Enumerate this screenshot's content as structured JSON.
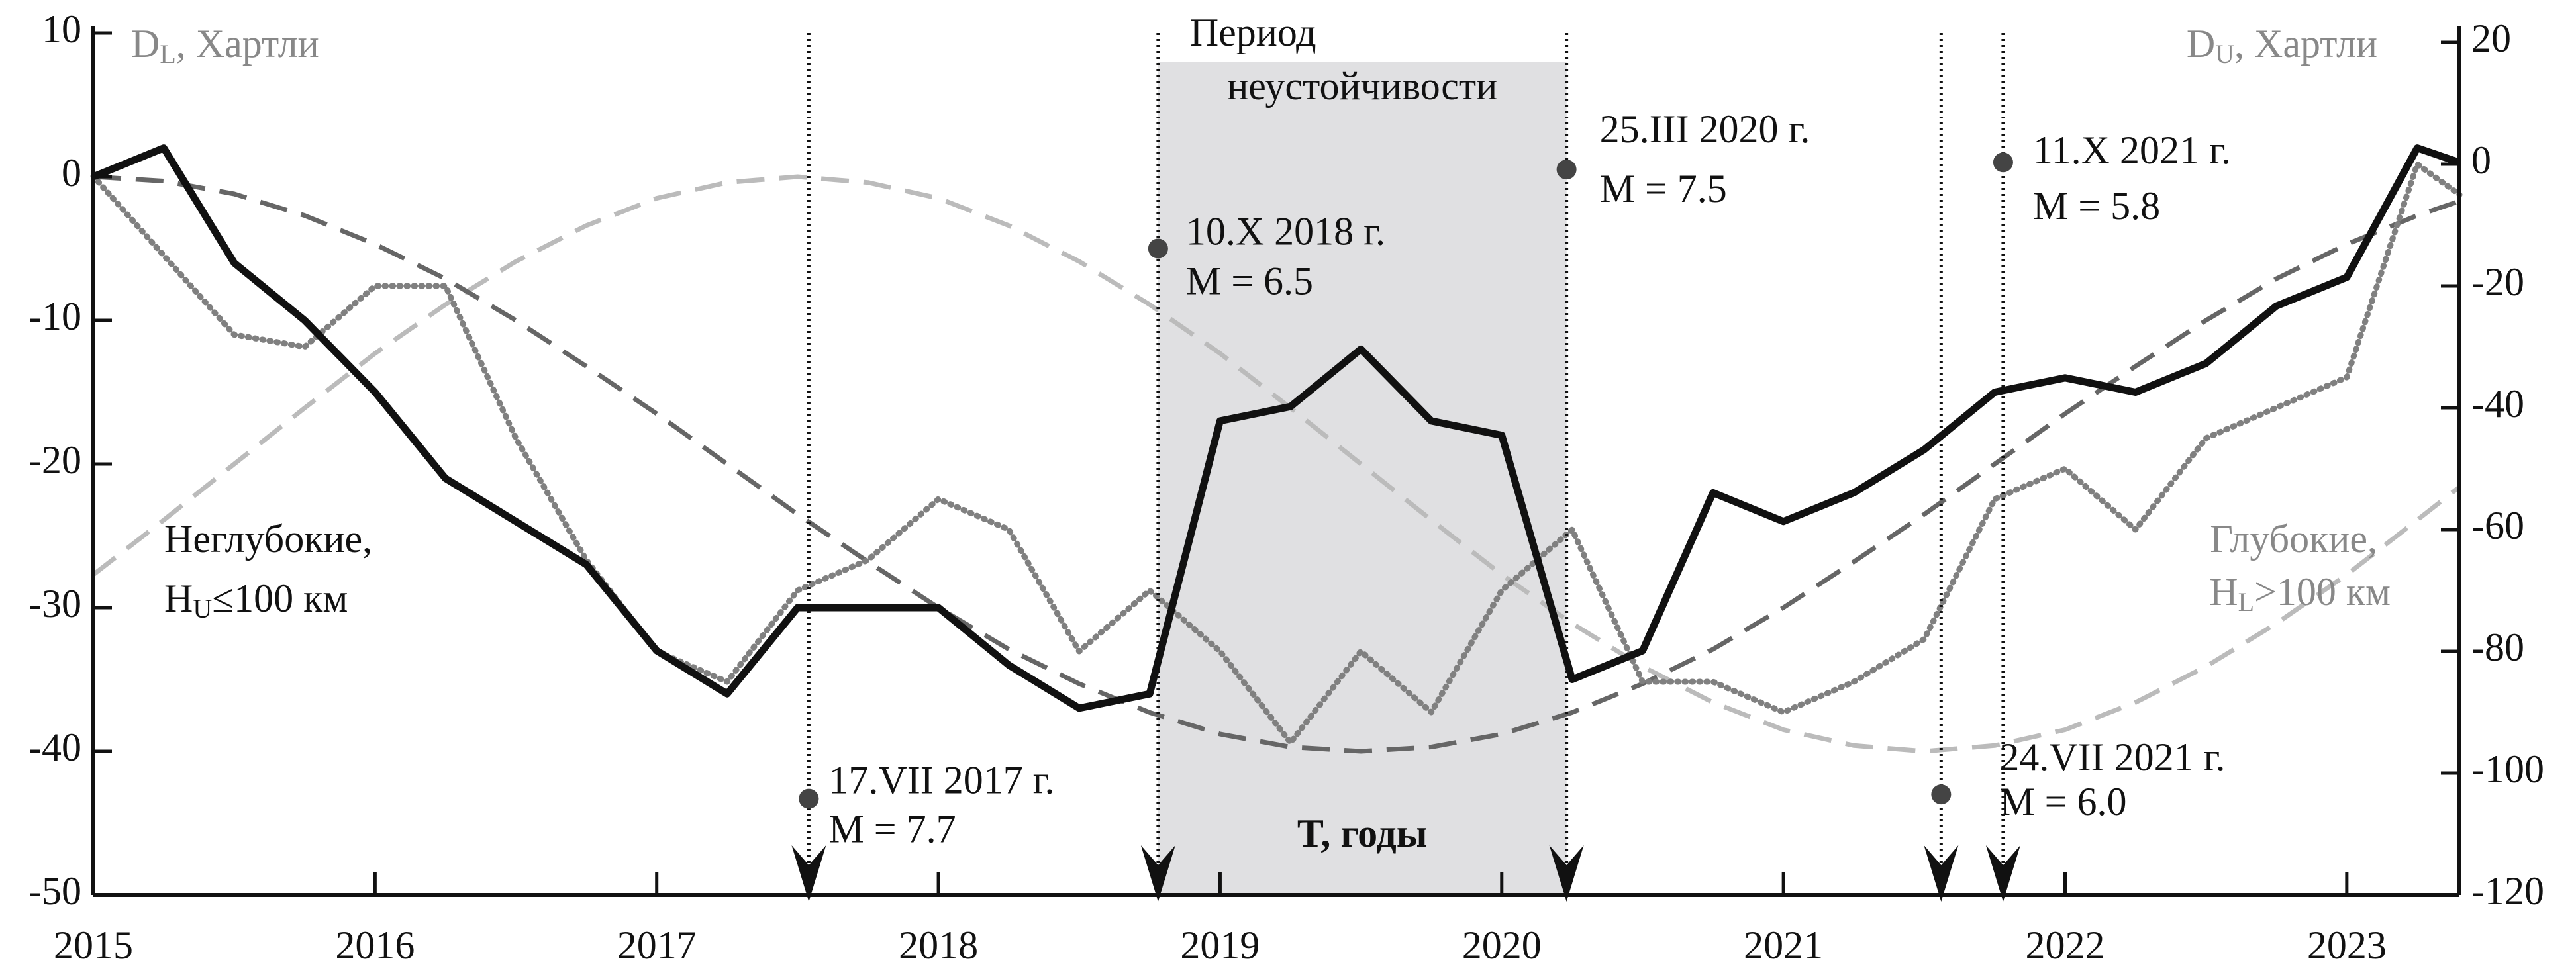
{
  "chart_data": {
    "type": "line",
    "y_label": {
      "main": "D",
      "sub": "L",
      "rest": ", Хартли"
    },
    "y2_label": {
      "main": "D",
      "sub": "U",
      "rest": ", Хартли"
    },
    "x_label": "T, годы",
    "xlim": [
      2015,
      2023.4
    ],
    "xticks": [
      2015,
      2016,
      2017,
      2018,
      2019,
      2020,
      2021,
      2022,
      2023
    ],
    "ylim": [
      -50,
      10
    ],
    "yticks": [
      10,
      0,
      -10,
      -20,
      -30,
      -40,
      -50
    ],
    "y2lim": [
      -120,
      20
    ],
    "y2ticks": [
      20,
      0,
      -20,
      -40,
      -60,
      -80,
      -100,
      -120
    ],
    "x": [
      2015,
      2015.25,
      2015.5,
      2015.75,
      2016,
      2016.25,
      2016.5,
      2016.75,
      2017,
      2017.25,
      2017.5,
      2017.75,
      2018,
      2018.25,
      2018.5,
      2018.75,
      2019,
      2019.25,
      2019.5,
      2019.75,
      2020,
      2020.25,
      2020.5,
      2020.75,
      2021,
      2021.25,
      2021.5,
      2021.75,
      2022,
      2022.25,
      2022.5,
      2022.75,
      2023,
      2023.25,
      2023.4
    ],
    "series": [
      {
        "color": "#bbbbbb",
        "style": "dashed",
        "values": [
          -27.7,
          -23.9,
          -20,
          -16.1,
          -12.3,
          -8.9,
          -5.9,
          -3.4,
          -1.5,
          -0.4,
          0,
          -0.4,
          -1.5,
          -3.4,
          -5.9,
          -8.9,
          -12.3,
          -16.1,
          -20,
          -23.9,
          -27.7,
          -31.1,
          -34.1,
          -36.6,
          -38.5,
          -39.6,
          -40,
          -39.6,
          -38.5,
          -36.6,
          -34.1,
          -31.1,
          -27.7,
          -23.9,
          -21.6
        ]
      },
      {
        "color": "#666666",
        "style": "dashed",
        "values": [
          0,
          -0.3,
          -1.2,
          -2.7,
          -4.7,
          -7.1,
          -10,
          -13.2,
          -16.5,
          -20,
          -23.5,
          -26.8,
          -30,
          -32.9,
          -35.3,
          -37.3,
          -38.8,
          -39.7,
          -40,
          -39.7,
          -38.8,
          -37.3,
          -35.3,
          -32.9,
          -30,
          -26.8,
          -23.5,
          -20,
          -16.5,
          -13.2,
          -10,
          -7.1,
          -4.7,
          -2.7,
          -1.7
        ]
      },
      {
        "color": "#808080",
        "style": "dotted",
        "axis": "y2",
        "values": [
          -2,
          -15,
          -28,
          -30,
          -20,
          -20,
          -45,
          -65,
          -80,
          -85,
          -70,
          -65,
          -55,
          -60,
          -80,
          -70,
          -80,
          -95,
          -80,
          -90,
          -70,
          -60,
          -85,
          -85,
          -90,
          -85,
          -78,
          -55,
          -50,
          -60,
          -45,
          -40,
          -35,
          0,
          -5
        ]
      },
      {
        "color": "#111111",
        "style": "solid",
        "values": [
          0,
          2,
          -6,
          -10,
          -15,
          -21,
          -24,
          -27,
          -33,
          -36,
          -30,
          -30,
          -30,
          -34,
          -37,
          -36,
          -17,
          -16,
          -12,
          -17,
          -18,
          -35,
          -33,
          -22,
          -24,
          -22,
          -19,
          -15,
          -14,
          -15,
          -13,
          -9,
          -7,
          2,
          1
        ]
      }
    ],
    "shaded_region": {
      "x": [
        2018.78,
        2020.23
      ],
      "top": 8,
      "color": "#e0e0e2",
      "lines": [
        "Период",
        "неустойчивости"
      ]
    },
    "events": [
      {
        "x": 2017.54,
        "y": -43.3,
        "date": "17.VII 2017 г.",
        "magnitude": "M = 7.7"
      },
      {
        "x": 2018.78,
        "y": -5,
        "date": "10.X 2018 г.",
        "magnitude": "M = 6.5"
      },
      {
        "x": 2020.23,
        "y": 0.5,
        "date": "25.III 2020 г.",
        "magnitude": "M = 7.5"
      },
      {
        "x": 2021.56,
        "y": -43,
        "date": "24.VII 2021 г.",
        "magnitude": "M = 6.0"
      },
      {
        "x": 2021.78,
        "y": 1,
        "date": "11.X 2021 г.",
        "magnitude": "M = 5.8"
      }
    ],
    "notes": [
      {
        "line1": "Неглубокие,",
        "main": "H",
        "sub": "U",
        "rest": "≤100 км"
      },
      {
        "line1": "Глубокие,",
        "main": "H",
        "sub": "L",
        "rest": ">100 км"
      }
    ]
  }
}
